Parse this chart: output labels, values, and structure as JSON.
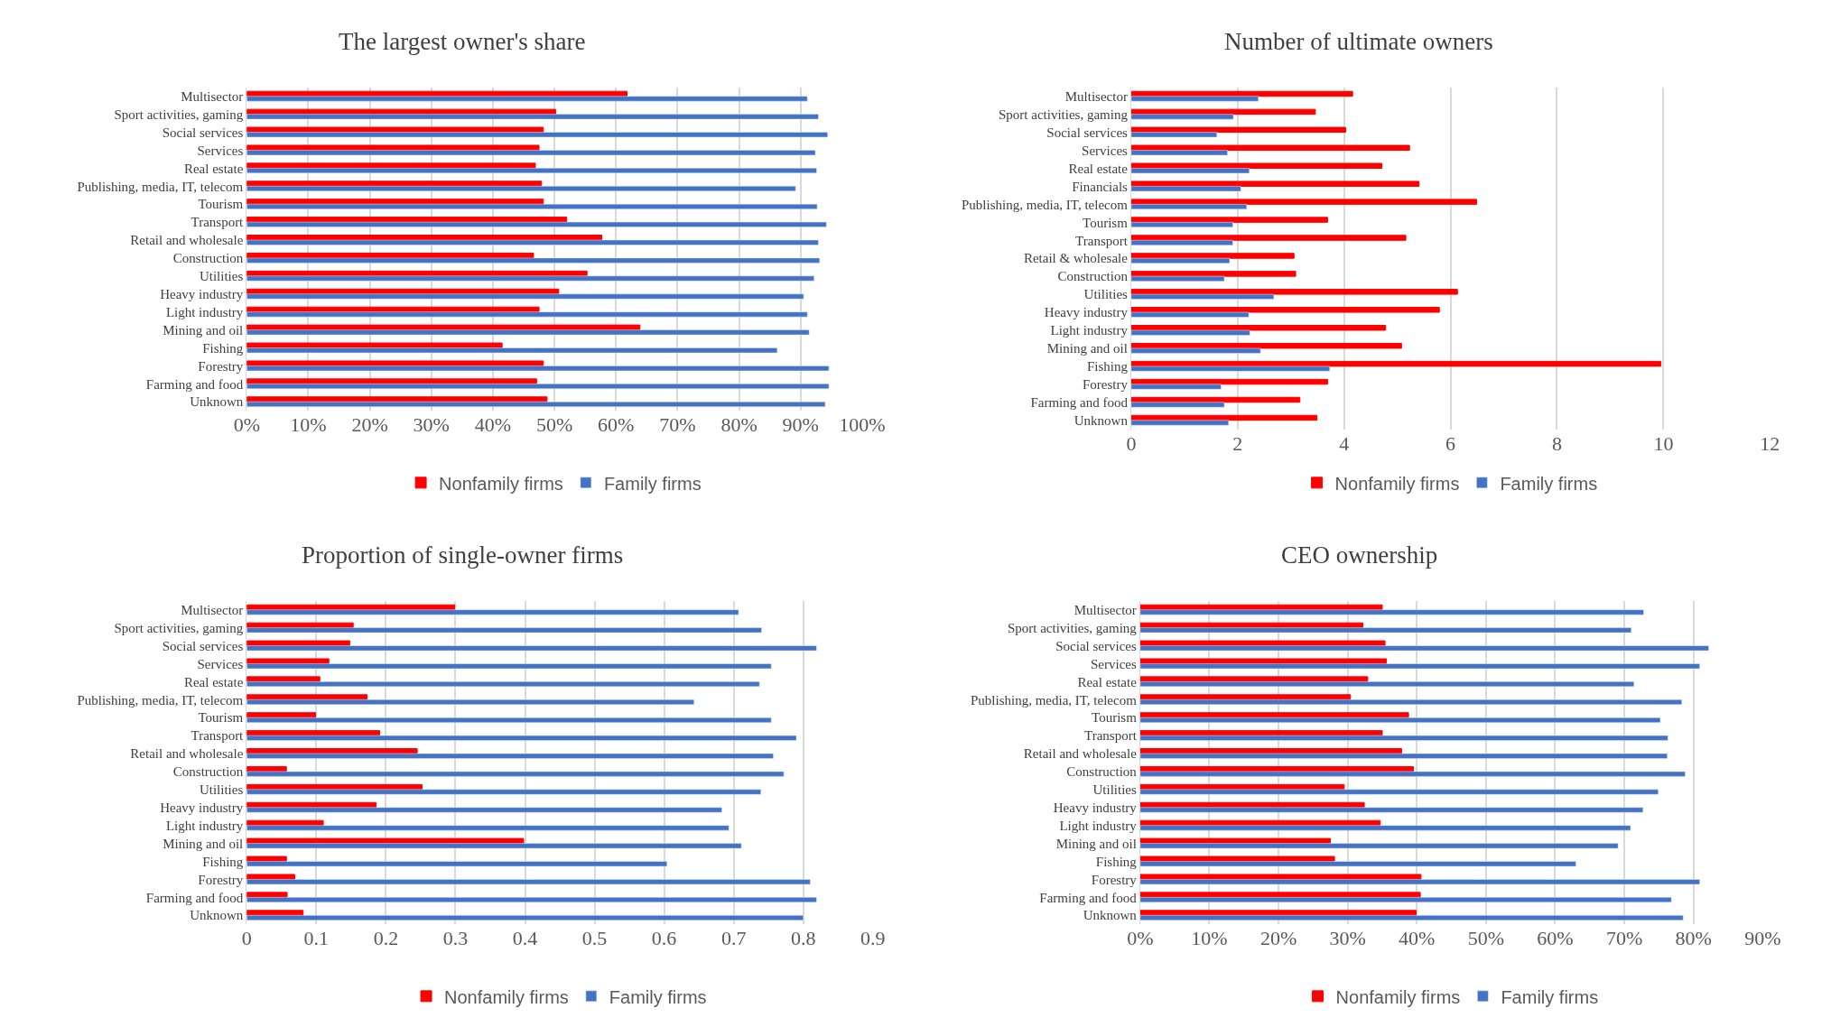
{
  "chart_data": [
    {
      "type": "bar",
      "orientation": "horizontal",
      "title": "The largest owner's share",
      "categories": [
        "Multisector",
        "Sport activities, gaming",
        "Social services",
        "Services",
        "Real estate",
        "Publishing, media, IT, telecom",
        "Tourism",
        "Transport",
        "Retail and wholesale",
        "Construction",
        "Utilities",
        "Heavy industry",
        "Light industry",
        "Mining and oil",
        "Fishing",
        "Forestry",
        "Farming and food",
        "Unknown"
      ],
      "series": [
        {
          "name": "Nonfamily firms",
          "color": "#ff0000",
          "values": [
            61.8,
            50.2,
            48.2,
            47.5,
            46.9,
            47.9,
            48.2,
            52.0,
            57.7,
            46.6,
            55.3,
            50.7,
            47.5,
            63.9,
            41.5,
            48.2,
            47.1,
            48.8
          ]
        },
        {
          "name": "Family firms",
          "color": "#4472c4",
          "values": [
            91.1,
            92.9,
            94.4,
            92.4,
            92.6,
            89.2,
            92.7,
            94.2,
            92.9,
            93.1,
            92.2,
            90.5,
            91.1,
            91.4,
            86.2,
            94.6,
            94.6,
            94.0
          ]
        }
      ],
      "xlim": [
        0,
        100
      ],
      "xticks": [
        {
          "value": 0,
          "label": "0%"
        },
        {
          "value": 10,
          "label": "10%"
        },
        {
          "value": 20,
          "label": "20%"
        },
        {
          "value": 30,
          "label": "30%"
        },
        {
          "value": 40,
          "label": "40%"
        },
        {
          "value": 50,
          "label": "50%"
        },
        {
          "value": 60,
          "label": "60%"
        },
        {
          "value": 70,
          "label": "70%"
        },
        {
          "value": 80,
          "label": "80%"
        },
        {
          "value": 90,
          "label": "90%"
        },
        {
          "value": 100,
          "label": "100%"
        }
      ],
      "grid": "x",
      "legend": "bottom"
    },
    {
      "type": "bar",
      "orientation": "horizontal",
      "title": "Number of ultimate owners",
      "categories": [
        "Multisector",
        "Sport activities, gaming",
        "Social services",
        "Services",
        "Real estate",
        "Financials",
        "Publishing, media, IT, telecom",
        "Tourism",
        "Transport",
        "Retail & wholesale",
        "Construction",
        "Utilities",
        "Heavy industry",
        "Light industry",
        "Mining and oil",
        "Fishing",
        "Forestry",
        "Farming and food",
        "Unknown"
      ],
      "series": [
        {
          "name": "Nonfamily firms",
          "color": "#ff0000",
          "values": [
            4.16,
            3.46,
            4.03,
            5.23,
            4.71,
            5.41,
            6.49,
            3.69,
            5.16,
            3.06,
            3.09,
            6.13,
            5.79,
            4.78,
            5.08,
            9.95,
            3.69,
            3.17,
            3.49
          ]
        },
        {
          "name": "Family firms",
          "color": "#4472c4",
          "values": [
            2.39,
            1.92,
            1.61,
            1.81,
            2.22,
            2.06,
            2.17,
            1.91,
            1.91,
            1.85,
            1.75,
            2.68,
            2.21,
            2.23,
            2.43,
            3.73,
            1.69,
            1.75,
            1.83
          ]
        }
      ],
      "xlim": [
        0,
        12
      ],
      "xticks": [
        0,
        2,
        4,
        6,
        8,
        10,
        12
      ],
      "grid": "x",
      "legend": "bottom"
    },
    {
      "type": "bar",
      "orientation": "horizontal",
      "title": "Proportion of single-owner firms",
      "categories": [
        "Multisector",
        "Sport activities, gaming",
        "Social services",
        "Services",
        "Real estate",
        "Publishing, media, IT, telecom",
        "Tourism",
        "Transport",
        "Retail and wholesale",
        "Construction",
        "Utilities",
        "Heavy industry",
        "Light industry",
        "Mining and oil",
        "Fishing",
        "Forestry",
        "Farming and food",
        "Unknown"
      ],
      "series": [
        {
          "name": "Nonfamily firms",
          "color": "#ff0000",
          "values": [
            0.299,
            0.153,
            0.148,
            0.118,
            0.105,
            0.173,
            0.099,
            0.191,
            0.245,
            0.057,
            0.252,
            0.186,
            0.11,
            0.398,
            0.057,
            0.069,
            0.058,
            0.081
          ]
        },
        {
          "name": "Family firms",
          "color": "#4472c4",
          "values": [
            0.707,
            0.74,
            0.819,
            0.754,
            0.737,
            0.643,
            0.754,
            0.79,
            0.757,
            0.772,
            0.739,
            0.683,
            0.693,
            0.711,
            0.604,
            0.81,
            0.819,
            0.8
          ]
        }
      ],
      "xlim": [
        0,
        0.9
      ],
      "xticks": [
        0,
        0.1,
        0.2,
        0.3,
        0.4,
        0.5,
        0.6,
        0.7,
        0.8,
        0.9
      ],
      "grid": "x",
      "legend": "bottom"
    },
    {
      "type": "bar",
      "orientation": "horizontal",
      "title": "CEO ownership",
      "categories": [
        "Multisector",
        "Sport activities, gaming",
        "Social services",
        "Services",
        "Real estate",
        "Publishing, media, IT, telecom",
        "Tourism",
        "Transport",
        "Retail and wholesale",
        "Construction",
        "Utilities",
        "Heavy industry",
        "Light industry",
        "Mining and oil",
        "Fishing",
        "Forestry",
        "Farming and food",
        "Unknown"
      ],
      "series": [
        {
          "name": "Nonfamily firms",
          "color": "#ff0000",
          "values": [
            35.0,
            32.2,
            35.4,
            35.6,
            32.9,
            30.4,
            38.8,
            35.0,
            37.8,
            39.5,
            29.5,
            32.4,
            34.7,
            27.5,
            28.1,
            40.6,
            40.5,
            39.9
          ]
        },
        {
          "name": "Family firms",
          "color": "#4472c4",
          "values": [
            72.8,
            71.0,
            82.2,
            80.9,
            71.4,
            78.3,
            75.2,
            76.3,
            76.2,
            78.8,
            74.9,
            72.7,
            70.9,
            69.1,
            63.0,
            80.9,
            76.8,
            78.5
          ]
        }
      ],
      "xlim": [
        0,
        90
      ],
      "xticks": [
        {
          "value": 0,
          "label": "0%"
        },
        {
          "value": 10,
          "label": "10%"
        },
        {
          "value": 20,
          "label": "20%"
        },
        {
          "value": 30,
          "label": "30%"
        },
        {
          "value": 40,
          "label": "40%"
        },
        {
          "value": 50,
          "label": "50%"
        },
        {
          "value": 60,
          "label": "60%"
        },
        {
          "value": 70,
          "label": "70%"
        },
        {
          "value": 80,
          "label": "80%"
        },
        {
          "value": 90,
          "label": "90%"
        }
      ],
      "grid": "x",
      "legend": "bottom"
    }
  ]
}
